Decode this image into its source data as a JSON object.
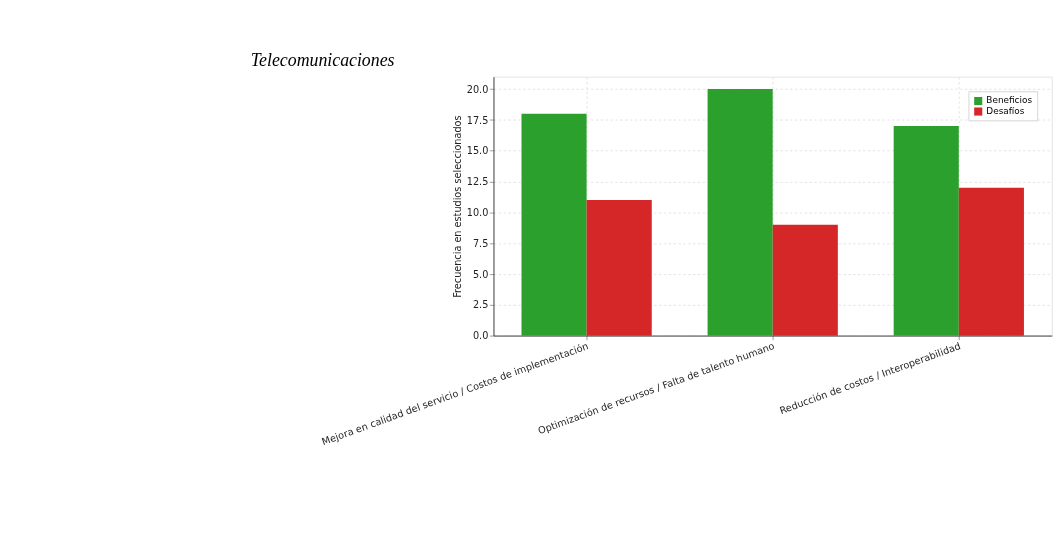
{
  "chart_data": {
    "type": "bar",
    "title": "Telecomunicaciones",
    "ylabel": "Frecuencia en estudios seleccionados",
    "categories": [
      "Mejora en calidad del servicio / Costos de implementación",
      "Optimización de recursos / Falta de talento humano",
      "Reducción de costos / Interoperabilidad"
    ],
    "series": [
      {
        "name": "Beneficios",
        "color": "#2ca02c",
        "values": [
          18,
          20,
          17
        ]
      },
      {
        "name": "Desafíos",
        "color": "#d62728",
        "values": [
          11,
          9,
          12
        ]
      }
    ],
    "ylim": [
      0,
      21
    ],
    "yticks": [
      {
        "value": 0,
        "label": "0.0"
      },
      {
        "value": 2.5,
        "label": "2.5"
      },
      {
        "value": 5,
        "label": "5.0"
      },
      {
        "value": 7.5,
        "label": "7.5"
      },
      {
        "value": 10,
        "label": "10.0"
      },
      {
        "value": 12.5,
        "label": "12.5"
      },
      {
        "value": 15,
        "label": "15.0"
      },
      {
        "value": 17.5,
        "label": "17.5"
      },
      {
        "value": 20,
        "label": "20.0"
      }
    ],
    "grid": true,
    "legend": "top right"
  }
}
